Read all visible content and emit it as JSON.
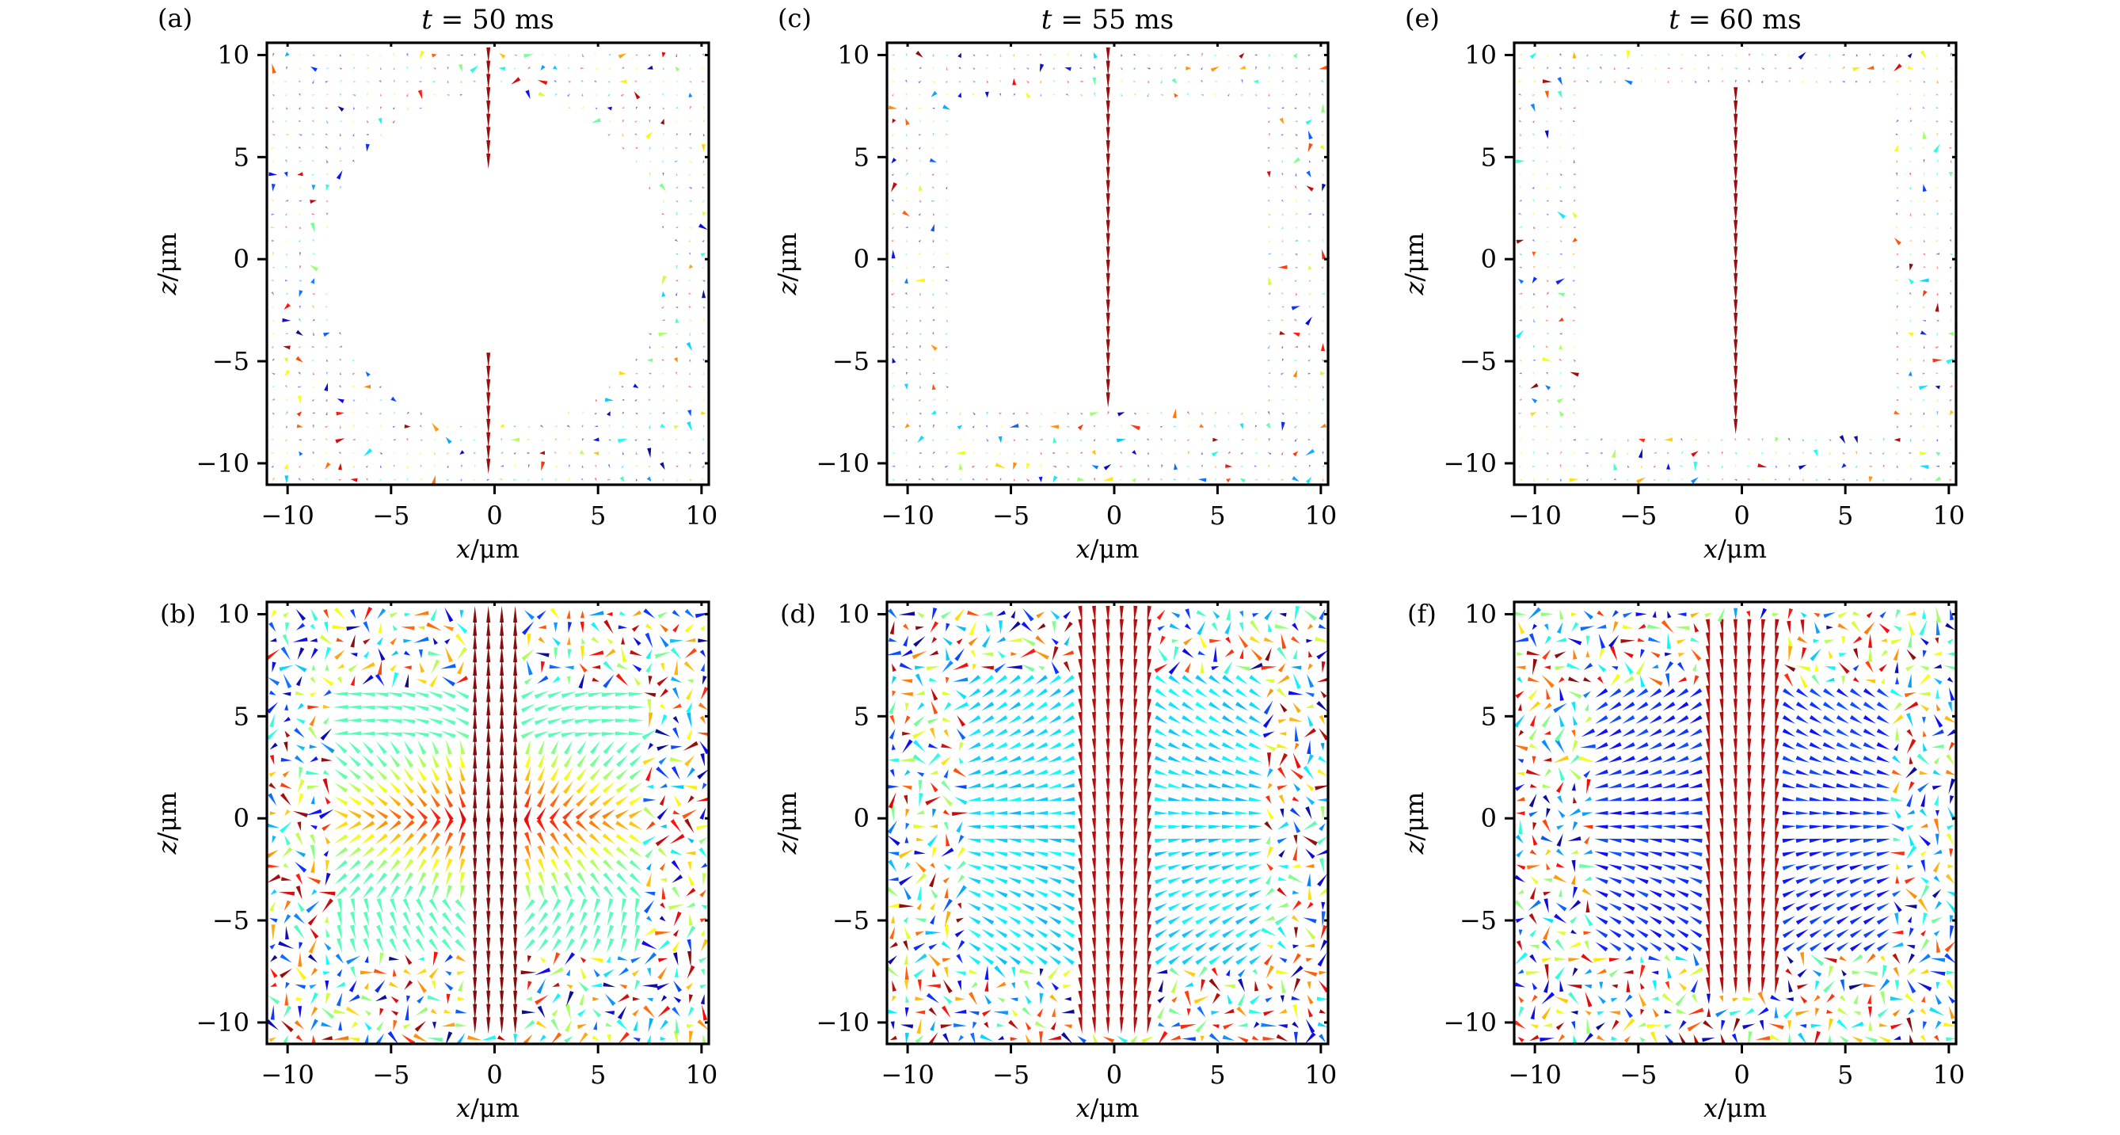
{
  "figure": {
    "description": "Spin texture (vector field) snapshots at three times, sparse (top row) and dense (bottom row) samplings"
  },
  "chart_data": [
    {
      "id": "a",
      "panel_label": "(a)",
      "title": "t = 50 ms",
      "title_var": "t",
      "title_rest": " = 50 ms",
      "type": "quiver",
      "xlabel_var": "x",
      "xlabel_unit": "/μm",
      "ylabel_var": "z",
      "ylabel_unit": "/μm",
      "xlim": [
        -11.0,
        10.35
      ],
      "ylim": [
        -11.05,
        10.6
      ],
      "xticks": [
        -10,
        -5,
        0,
        5,
        10
      ],
      "yticks": [
        -10,
        -5,
        0,
        5,
        10
      ],
      "xtick_labels": [
        "−10",
        "−5",
        "0",
        "5",
        "10"
      ],
      "ytick_labels": [
        "−10",
        "−5",
        "0",
        "5",
        "10"
      ],
      "grid": false,
      "colormap": "jet",
      "field": {
        "model": "sparse-core",
        "grid_spacing": 0.65,
        "core_pattern": "vertical-line-gapped",
        "core_extent_z": [
          [
            4.8,
            10.4
          ],
          [
            -10.4,
            -4.6
          ]
        ],
        "empty_region": "central disk radius ~8",
        "edge_density": 0.45,
        "seed": 11
      }
    },
    {
      "id": "b",
      "panel_label": "(b)",
      "title": "",
      "type": "quiver",
      "xlabel_var": "x",
      "xlabel_unit": "/μm",
      "ylabel_var": "z",
      "ylabel_unit": "/μm",
      "xlim": [
        -11.0,
        10.35
      ],
      "ylim": [
        -11.05,
        10.6
      ],
      "xticks": [
        -10,
        -5,
        0,
        5,
        10
      ],
      "yticks": [
        -10,
        -5,
        0,
        5,
        10
      ],
      "xtick_labels": [
        "−10",
        "−5",
        "0",
        "5",
        "10"
      ],
      "ytick_labels": [
        "−10",
        "−5",
        "0",
        "5",
        "10"
      ],
      "grid": false,
      "colormap": "jet",
      "field": {
        "model": "radial-hedgehog",
        "grid_spacing": 0.65,
        "core_halfwidth_x": 7.5,
        "core_halfheight_z": 6.5,
        "outer_noise": true,
        "seed": 22
      }
    },
    {
      "id": "c",
      "panel_label": "(c)",
      "title": "t = 55 ms",
      "title_var": "t",
      "title_rest": " = 55 ms",
      "type": "quiver",
      "xlabel_var": "x",
      "xlabel_unit": "/μm",
      "ylabel_var": "z",
      "ylabel_unit": "/μm",
      "xlim": [
        -11.0,
        10.35
      ],
      "ylim": [
        -11.05,
        10.6
      ],
      "xticks": [
        -10,
        -5,
        0,
        5,
        10
      ],
      "yticks": [
        -10,
        -5,
        0,
        5,
        10
      ],
      "xtick_labels": [
        "−10",
        "−5",
        "0",
        "5",
        "10"
      ],
      "ytick_labels": [
        "−10",
        "−5",
        "0",
        "5",
        "10"
      ],
      "grid": false,
      "colormap": "jet",
      "field": {
        "model": "sparse-core",
        "grid_spacing": 0.65,
        "core_pattern": "vertical-line",
        "core_extent_z": [
          [
            -7.5,
            10.4
          ]
        ],
        "empty_region": "rectangle |x|<7.5, -7.5<z<8",
        "edge_density": 0.4,
        "seed": 33
      }
    },
    {
      "id": "d",
      "panel_label": "(d)",
      "title": "",
      "type": "quiver",
      "xlabel_var": "x",
      "xlabel_unit": "/μm",
      "ylabel_var": "z",
      "ylabel_unit": "/μm",
      "xlim": [
        -11.0,
        10.35
      ],
      "ylim": [
        -11.05,
        10.6
      ],
      "xticks": [
        -10,
        -5,
        0,
        5,
        10
      ],
      "yticks": [
        -10,
        -5,
        0,
        5,
        10
      ],
      "xtick_labels": [
        "−10",
        "−5",
        "0",
        "5",
        "10"
      ],
      "ytick_labels": [
        "−10",
        "−5",
        "0",
        "5",
        "10"
      ],
      "grid": false,
      "colormap": "jet",
      "field": {
        "model": "column-with-lobes",
        "grid_spacing": 0.65,
        "column_halfwidth_x": 2.0,
        "lobe_extent_x": [
          2.0,
          7.0
        ],
        "lobe_extent_z": [
          -7.0,
          7.0
        ],
        "lobe_color_value": 0.3,
        "outer_noise": true,
        "seed": 44
      }
    },
    {
      "id": "e",
      "panel_label": "(e)",
      "title": "t = 60 ms",
      "title_var": "t",
      "title_rest": " = 60 ms",
      "type": "quiver",
      "xlabel_var": "x",
      "xlabel_unit": "/μm",
      "ylabel_var": "z",
      "ylabel_unit": "/μm",
      "xlim": [
        -11.0,
        10.35
      ],
      "ylim": [
        -11.05,
        10.6
      ],
      "xticks": [
        -10,
        -5,
        0,
        5,
        10
      ],
      "yticks": [
        -10,
        -5,
        0,
        5,
        10
      ],
      "xtick_labels": [
        "−10",
        "−5",
        "0",
        "5",
        "10"
      ],
      "ytick_labels": [
        "−10",
        "−5",
        "0",
        "5",
        "10"
      ],
      "grid": false,
      "colormap": "jet",
      "field": {
        "model": "sparse-core",
        "grid_spacing": 0.65,
        "core_pattern": "vertical-line",
        "core_extent_z": [
          [
            -8.3,
            8.3
          ]
        ],
        "empty_region": "rectangle |x|<7.5, -8.5<z<8.5",
        "edge_density": 0.4,
        "seed": 55
      }
    },
    {
      "id": "f",
      "panel_label": "(f)",
      "title": "",
      "type": "quiver",
      "xlabel_var": "x",
      "xlabel_unit": "/μm",
      "ylabel_var": "z",
      "ylabel_unit": "/μm",
      "xlim": [
        -11.0,
        10.35
      ],
      "ylim": [
        -11.05,
        10.6
      ],
      "xticks": [
        -10,
        -5,
        0,
        5,
        10
      ],
      "yticks": [
        -10,
        -5,
        0,
        5,
        10
      ],
      "xtick_labels": [
        "−10",
        "−5",
        "0",
        "5",
        "10"
      ],
      "ytick_labels": [
        "−10",
        "−5",
        "0",
        "5",
        "10"
      ],
      "grid": false,
      "colormap": "jet",
      "field": {
        "model": "column-with-lobes",
        "grid_spacing": 0.65,
        "column_halfwidth_x": 2.0,
        "column_extent_z": [
          -8.3,
          9.5
        ],
        "lobe_extent_x": [
          2.0,
          7.0
        ],
        "lobe_extent_z": [
          -6.5,
          6.5
        ],
        "lobe_color_value": 0.12,
        "outer_noise": true,
        "seed": 66
      }
    }
  ]
}
